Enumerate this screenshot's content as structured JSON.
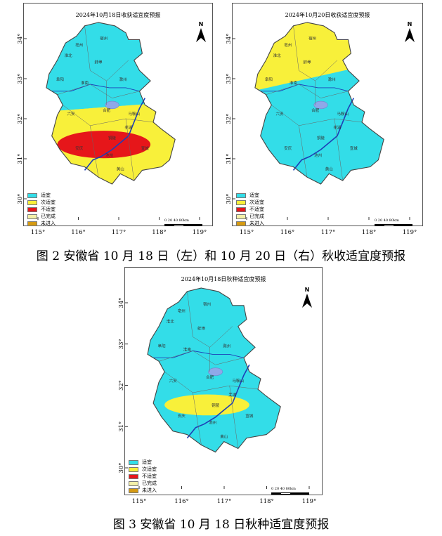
{
  "colors": {
    "suitable": "#33dde8",
    "less_suitable": "#f8f03a",
    "unsuitable": "#e6161a",
    "lake": "#8fa8e8",
    "river": "#1d3fb8",
    "border": "#444444"
  },
  "legend": [
    {
      "label": "适宜",
      "color": "#33dde8"
    },
    {
      "label": "次适宜",
      "color": "#f8f03a"
    },
    {
      "label": "不适宜",
      "color": "#e6161a"
    },
    {
      "label": "已完成",
      "color": "#f3f0a8"
    },
    {
      "label": "未进入",
      "color": "#d59a12"
    }
  ],
  "north_letter": "N",
  "scale_labels": "0  20  40        80km",
  "x_ticks": [
    "115°",
    "116°",
    "117°",
    "118°",
    "119°"
  ],
  "y_ticks": [
    "34°",
    "33°",
    "32°",
    "31°",
    "30°"
  ],
  "maps": [
    {
      "title": "2024年10月18日收获适宜度预报",
      "zones": {
        "north": "suitable",
        "band": "less_suitable",
        "south": "less_suitable",
        "blob": "unsuitable"
      }
    },
    {
      "title": "2024年10月20日收获适宜度预报",
      "zones": {
        "north": "less_suitable",
        "band": "suitable",
        "south": "suitable",
        "blob": "none"
      }
    },
    {
      "title": "2024年10月18日秋种适宜度预报",
      "zones": {
        "north": "suitable",
        "band": "suitable",
        "south": "suitable",
        "blob": "less_suitable"
      }
    }
  ],
  "place_labels": [
    "宿州",
    "淮北",
    "蚌埠",
    "阜阳",
    "淮南",
    "滁州",
    "六安",
    "合肥",
    "马鞍山",
    "芜湖",
    "铜陵",
    "宣城",
    "安庆",
    "池州",
    "黄山",
    "亳州"
  ],
  "captions": {
    "fig2": "图 2   安徽省 10 月 18 日（左）和 10 月 20 日（右）秋收适宜度预报",
    "fig3": "图 3   安徽省 10 月 18 日秋种适宜度预报"
  }
}
